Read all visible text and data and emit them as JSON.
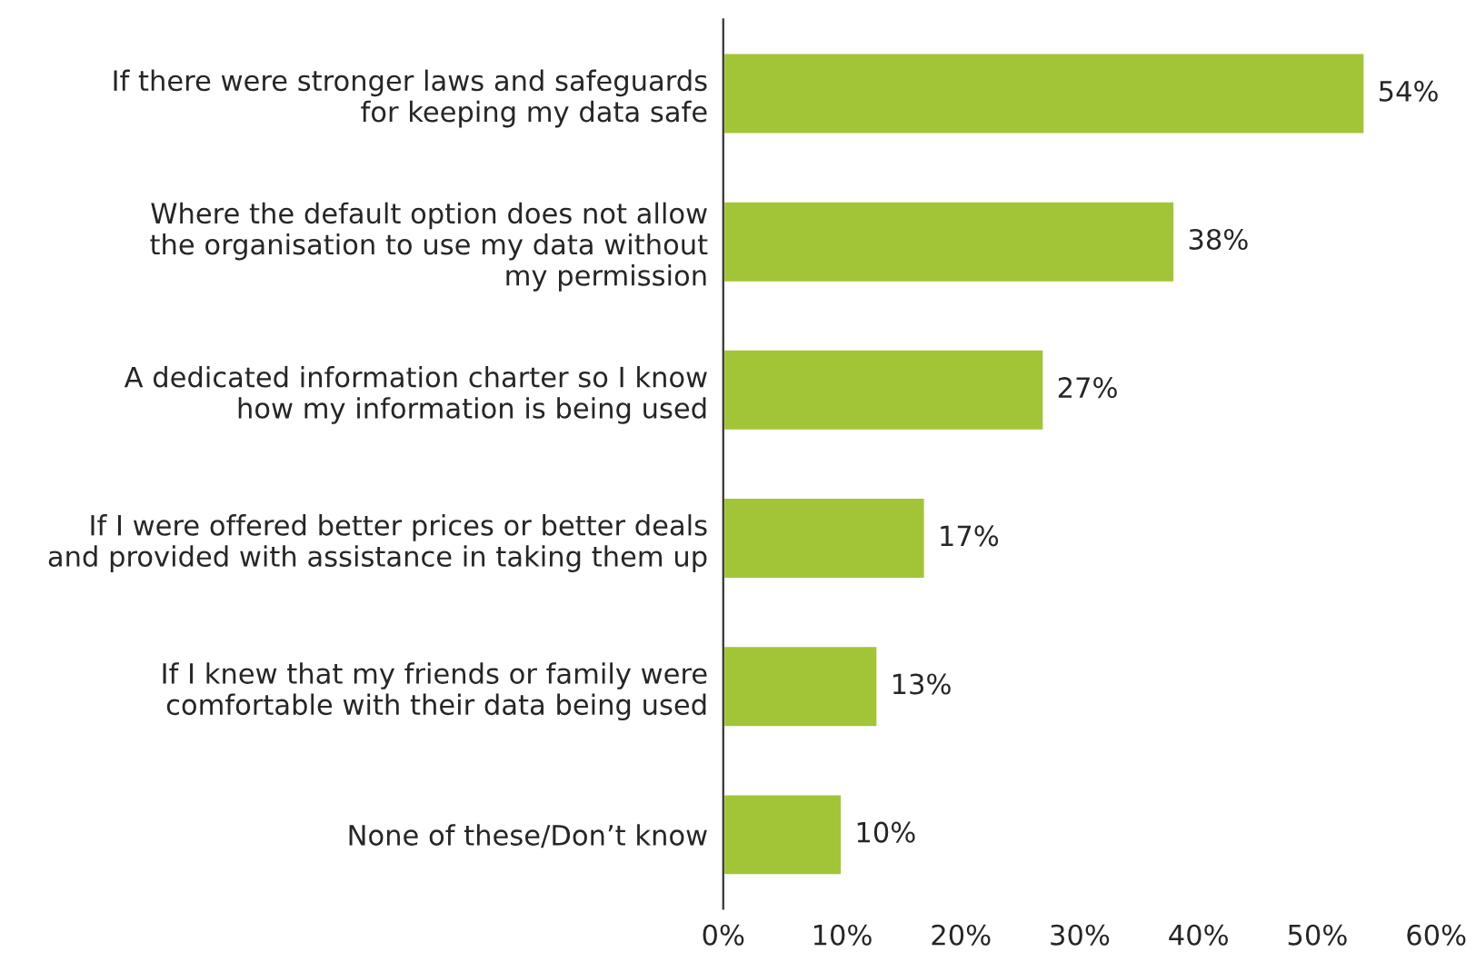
{
  "chart_data": {
    "type": "bar",
    "orientation": "horizontal",
    "categories": [
      "If there were stronger laws and safeguards\nfor keeping my data safe",
      "Where the default option does not allow\nthe organisation to use my data without\nmy permission",
      "A dedicated information charter so I know\nhow my information is being used",
      "If I were offered better prices or better deals\nand provided with assistance in taking them up",
      "If I knew that my friends or family were\ncomfortable with their data being used",
      "None of these/Don’t know"
    ],
    "values": [
      54,
      38,
      27,
      17,
      13,
      10
    ],
    "value_labels": [
      "54%",
      "38%",
      "27%",
      "17%",
      "13%",
      "10%"
    ],
    "color": "#a2c537",
    "xlim": [
      0,
      60
    ],
    "xticks": [
      {
        "value": 0,
        "label": "0%"
      },
      {
        "value": 10,
        "label": "10%"
      },
      {
        "value": 20,
        "label": "20%"
      },
      {
        "value": 30,
        "label": "30%"
      },
      {
        "value": 40,
        "label": "40%"
      },
      {
        "value": 50,
        "label": "50%"
      },
      {
        "value": 60,
        "label": "60%"
      }
    ],
    "grid": false,
    "legend": false
  }
}
